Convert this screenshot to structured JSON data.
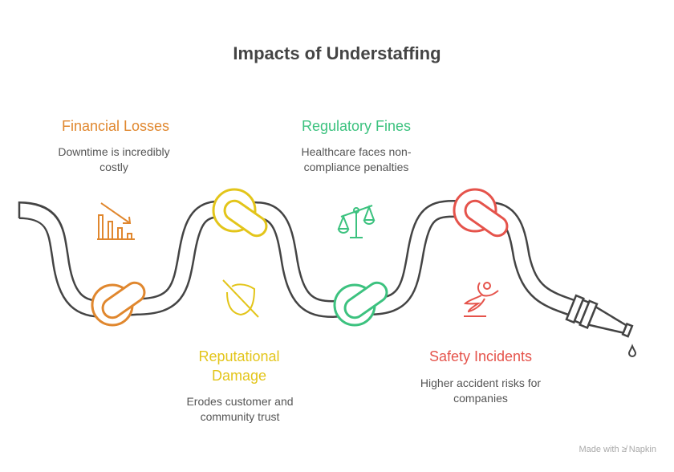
{
  "title": "Impacts of Understaffing",
  "items": [
    {
      "heading": "Financial Losses",
      "description": [
        "Downtime is incredibly",
        "costly"
      ],
      "color": "#E0872E",
      "icon": "declining-bar-chart-icon"
    },
    {
      "heading": "Regulatory Fines",
      "description": [
        "Healthcare faces non-",
        "compliance penalties"
      ],
      "color": "#3CC27F",
      "icon": "scales-icon"
    },
    {
      "heading": [
        "Reputational",
        "Damage"
      ],
      "description": [
        "Erodes customer and",
        "community trust"
      ],
      "color": "#E3C51A",
      "icon": "shield-off-icon"
    },
    {
      "heading": "Safety Incidents",
      "description": [
        "Higher accident risks for",
        "companies"
      ],
      "color": "#E5534B",
      "icon": "falling-person-icon"
    }
  ],
  "footer": {
    "label": "Made with",
    "brand": "Napkin"
  }
}
